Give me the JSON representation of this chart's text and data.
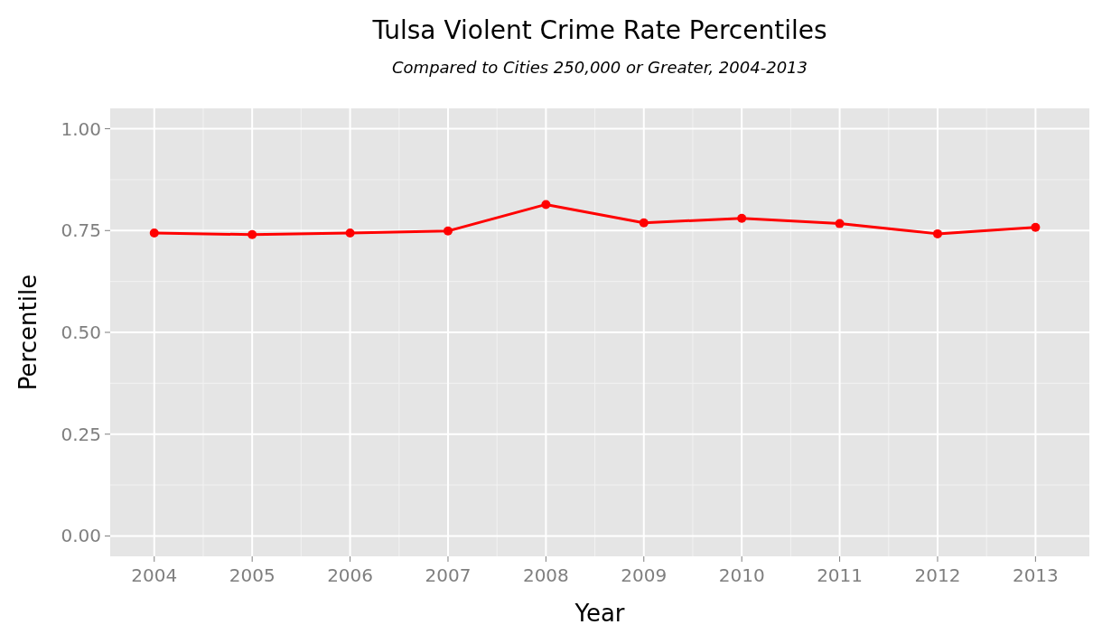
{
  "chart_data": {
    "type": "line",
    "title": "Tulsa Violent Crime Rate Percentiles",
    "subtitle": "Compared to Cities 250,000 or Greater, 2004-2013",
    "xlabel": "Year",
    "ylabel": "Percentile",
    "x": [
      2004,
      2005,
      2006,
      2007,
      2008,
      2009,
      2010,
      2011,
      2012,
      2013
    ],
    "series": [
      {
        "color": "#ff0000",
        "values": [
          0.744,
          0.74,
          0.744,
          0.749,
          0.814,
          0.769,
          0.78,
          0.767,
          0.742,
          0.758
        ]
      }
    ],
    "xlim": [
      2003.55,
      2013.55
    ],
    "xticks": [
      2004,
      2005,
      2006,
      2007,
      2008,
      2009,
      2010,
      2011,
      2012,
      2013
    ],
    "ylim": [
      -0.05,
      1.05
    ],
    "yticks": [
      {
        "value": 0,
        "label": "0.00"
      },
      {
        "value": 0.25,
        "label": "0.25"
      },
      {
        "value": 0.5,
        "label": "0.50"
      },
      {
        "value": 0.75,
        "label": "0.75"
      },
      {
        "value": 1,
        "label": "1.00"
      }
    ],
    "grid": true,
    "marker": "circle",
    "line_style": "solid"
  }
}
